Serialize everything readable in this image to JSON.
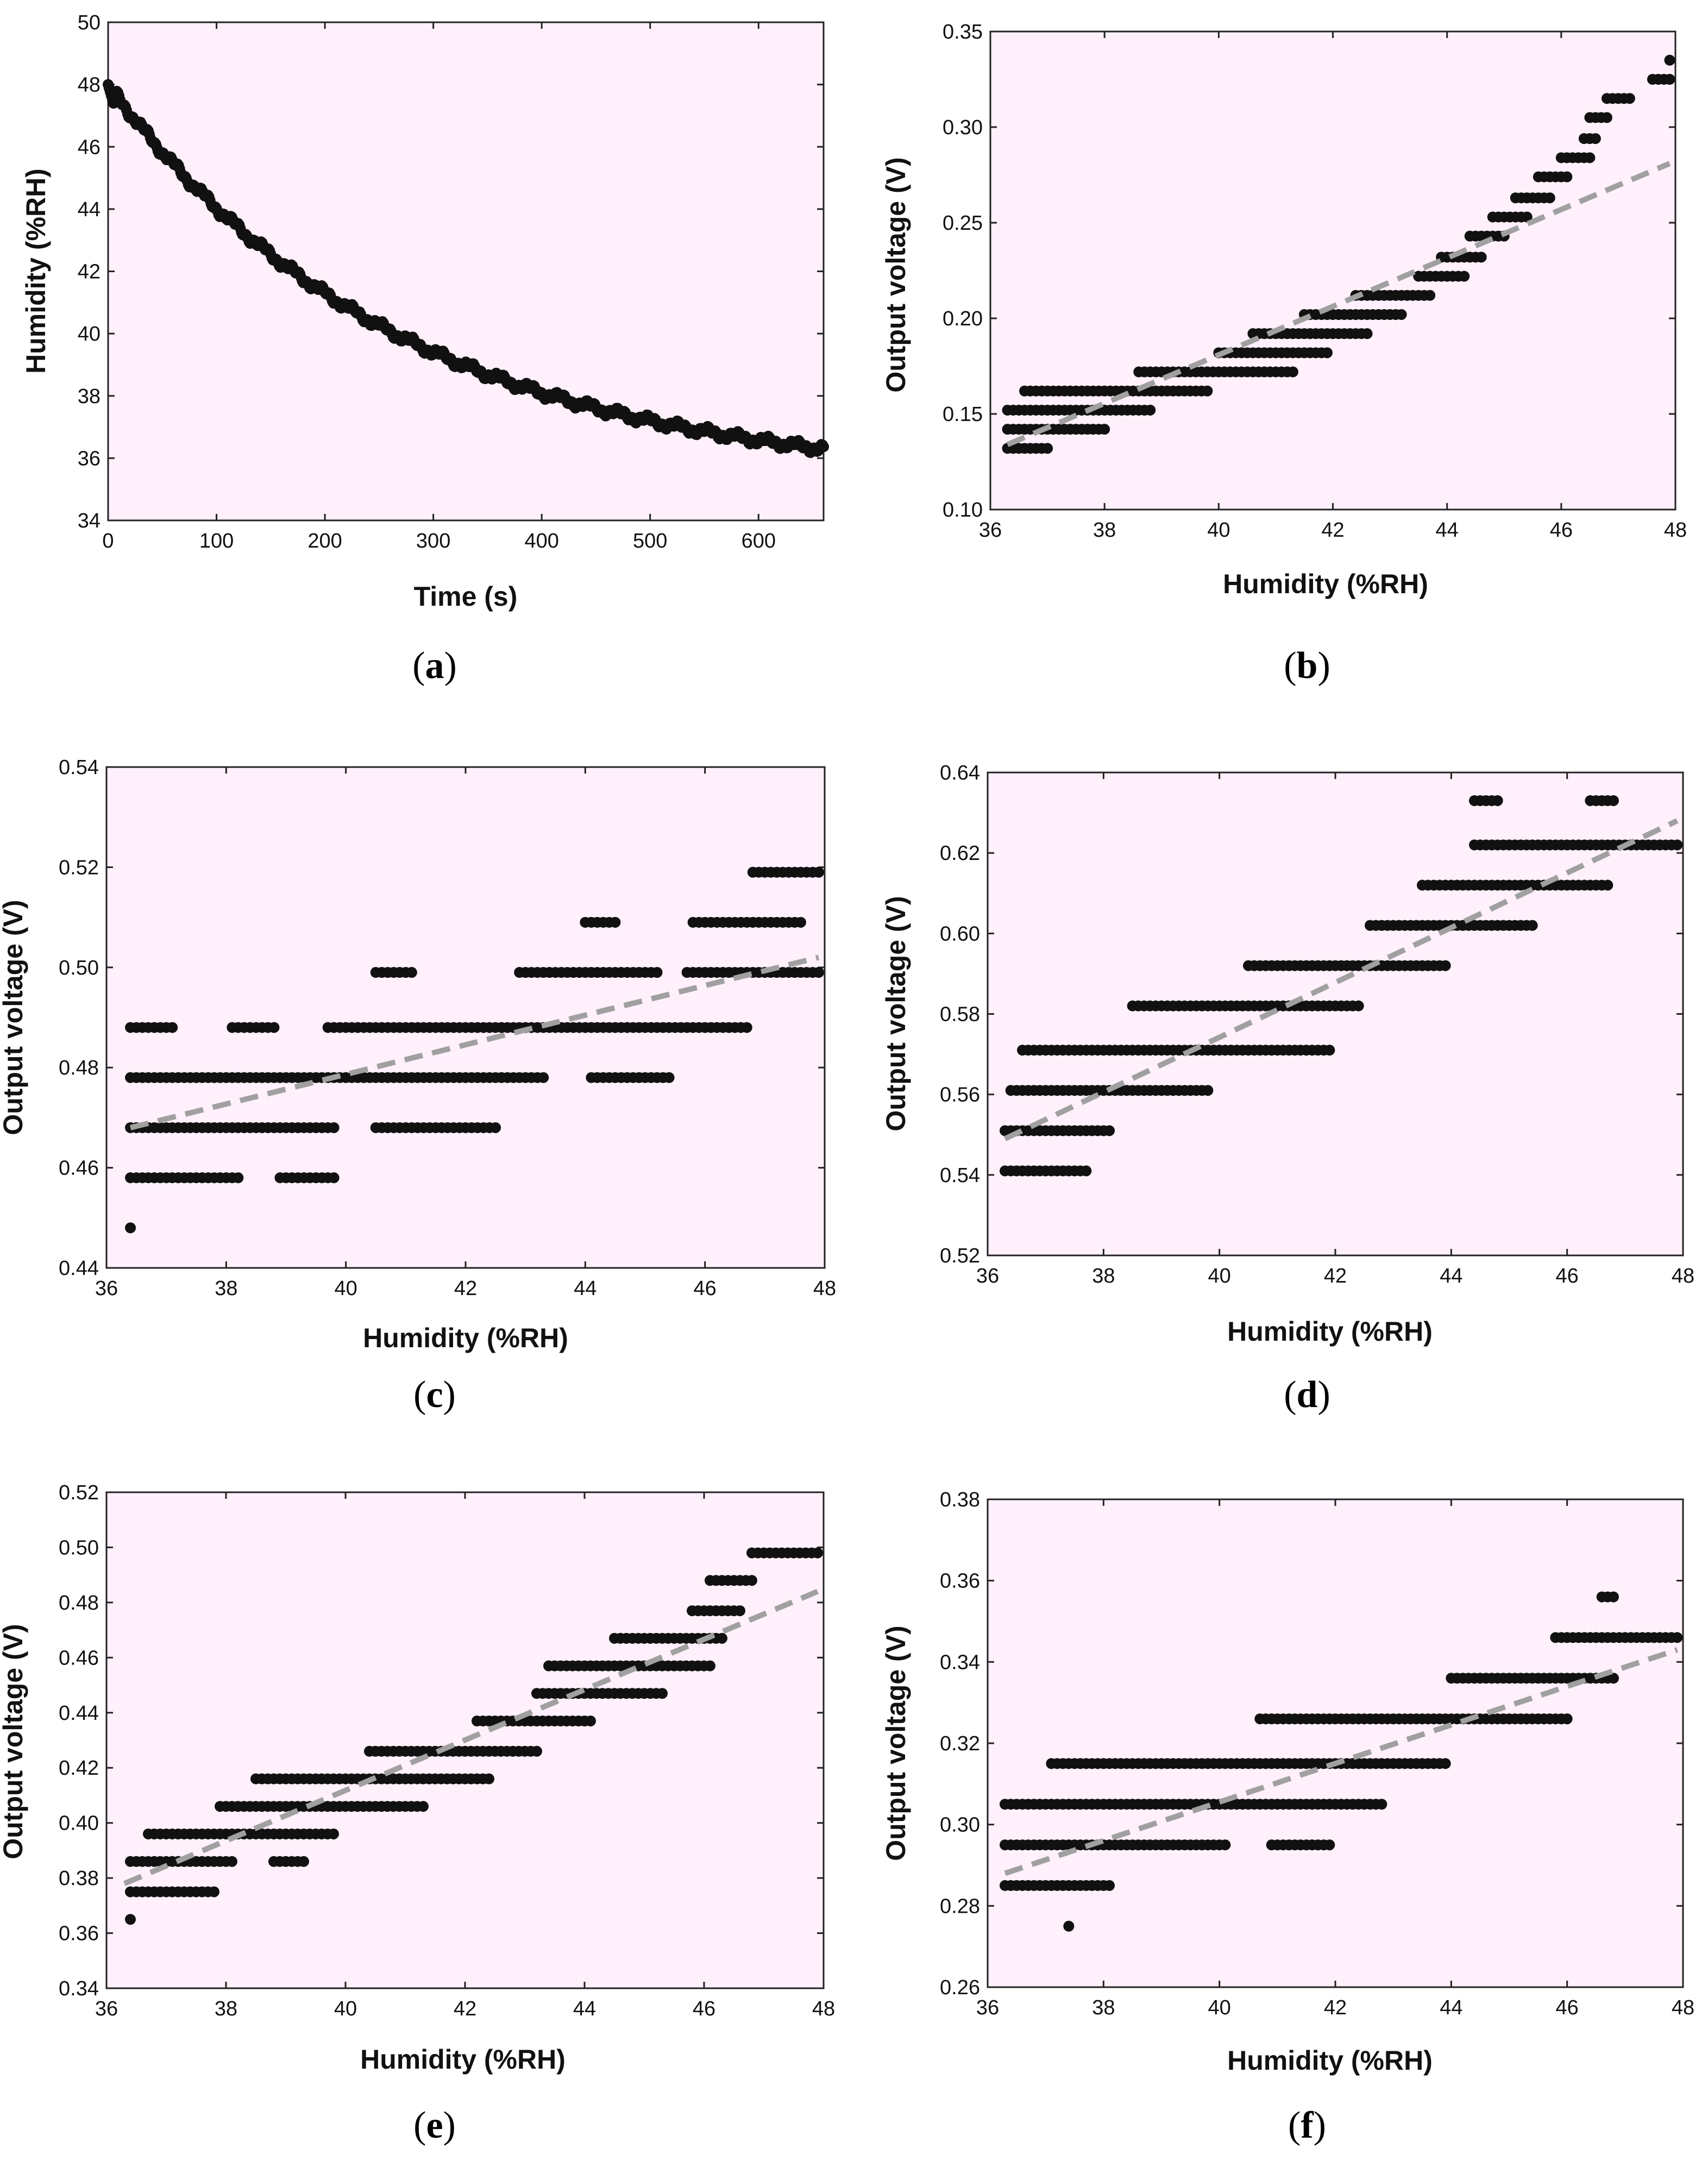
{
  "colors": {
    "plot_bg": "#fff0fb",
    "marker": "#111111",
    "fit_line": "#a0a0a0",
    "frame": "#222222"
  },
  "chart_data": [
    {
      "id": "a",
      "type": "scatter",
      "caption": {
        "open": "(",
        "letter": "a",
        "close": ")"
      },
      "xlabel": "Time (s)",
      "ylabel": "Humidity (%RH)",
      "xlim": [
        0,
        660
      ],
      "ylim": [
        34,
        50
      ],
      "xticks": [
        0,
        100,
        200,
        300,
        400,
        500,
        600
      ],
      "yticks": [
        34,
        36,
        38,
        40,
        42,
        44,
        46,
        48,
        50
      ],
      "curve": {
        "model": "exponential_decay",
        "start": 48.0,
        "end": 36.3,
        "n_points": 660,
        "plateau": 35.2,
        "tau": 270
      },
      "fit_line": null
    },
    {
      "id": "b",
      "type": "scatter",
      "caption": {
        "open": "(",
        "letter": "b",
        "close": ")"
      },
      "xlabel": "Humidity (%RH)",
      "ylabel": "Output voltage (V)",
      "xlim": [
        36,
        48
      ],
      "ylim": [
        0.1,
        0.35
      ],
      "xticks": [
        36,
        38,
        40,
        42,
        44,
        46,
        48
      ],
      "yticks": [
        0.1,
        0.15,
        0.2,
        0.25,
        0.3,
        0.35
      ],
      "ytick_decimals": 2,
      "series": [
        {
          "y": 0.132,
          "x_from": 36.3,
          "x_to": 37.0
        },
        {
          "y": 0.142,
          "x_from": 36.3,
          "x_to": 38.0
        },
        {
          "y": 0.152,
          "x_from": 36.3,
          "x_to": 38.8
        },
        {
          "y": 0.162,
          "x_from": 36.6,
          "x_to": 39.8
        },
        {
          "y": 0.172,
          "x_from": 38.6,
          "x_to": 41.3
        },
        {
          "y": 0.182,
          "x_from": 40.0,
          "x_to": 41.9
        },
        {
          "y": 0.192,
          "x_from": 40.6,
          "x_to": 42.6
        },
        {
          "y": 0.202,
          "x_from": 41.5,
          "x_to": 43.2
        },
        {
          "y": 0.212,
          "x_from": 42.4,
          "x_to": 43.7
        },
        {
          "y": 0.222,
          "x_from": 43.5,
          "x_to": 44.3
        },
        {
          "y": 0.232,
          "x_from": 43.9,
          "x_to": 44.6
        },
        {
          "y": 0.243,
          "x_from": 44.4,
          "x_to": 45.0
        },
        {
          "y": 0.253,
          "x_from": 44.8,
          "x_to": 45.4
        },
        {
          "y": 0.263,
          "x_from": 45.2,
          "x_to": 45.8
        },
        {
          "y": 0.274,
          "x_from": 45.6,
          "x_to": 46.1
        },
        {
          "y": 0.284,
          "x_from": 46.0,
          "x_to": 46.5
        },
        {
          "y": 0.294,
          "x_from": 46.4,
          "x_to": 46.6
        },
        {
          "y": 0.305,
          "x_from": 46.5,
          "x_to": 46.8
        },
        {
          "y": 0.315,
          "x_from": 46.8,
          "x_to": 47.2
        },
        {
          "y": 0.325,
          "x_from": 47.6,
          "x_to": 47.9
        },
        {
          "y": 0.335,
          "x_from": 47.9,
          "x_to": 47.9
        }
      ],
      "fit_line": {
        "x1": 36.3,
        "y1": 0.134,
        "x2": 47.9,
        "y2": 0.281
      }
    },
    {
      "id": "c",
      "type": "scatter",
      "caption": {
        "open": "(",
        "letter": "c",
        "close": ")"
      },
      "xlabel": "Humidity (%RH)",
      "ylabel": "Output voltage (V)",
      "xlim": [
        36,
        48
      ],
      "ylim": [
        0.44,
        0.54
      ],
      "xticks": [
        36,
        38,
        40,
        42,
        44,
        46,
        48
      ],
      "yticks": [
        0.44,
        0.46,
        0.48,
        0.5,
        0.52,
        0.54
      ],
      "ytick_decimals": 2,
      "series": [
        {
          "y": 0.448,
          "x_from": 36.4,
          "x_to": 36.4
        },
        {
          "y": 0.458,
          "x_from": 36.4,
          "x_to": 38.2
        },
        {
          "y": 0.458,
          "x_from": 38.9,
          "x_to": 39.8
        },
        {
          "y": 0.468,
          "x_from": 36.4,
          "x_to": 39.8
        },
        {
          "y": 0.468,
          "x_from": 40.5,
          "x_to": 42.5
        },
        {
          "y": 0.478,
          "x_from": 36.4,
          "x_to": 43.3
        },
        {
          "y": 0.478,
          "x_from": 44.1,
          "x_to": 45.4
        },
        {
          "y": 0.488,
          "x_from": 36.4,
          "x_to": 37.1
        },
        {
          "y": 0.488,
          "x_from": 38.1,
          "x_to": 38.8
        },
        {
          "y": 0.488,
          "x_from": 39.7,
          "x_to": 46.7
        },
        {
          "y": 0.499,
          "x_from": 40.5,
          "x_to": 41.1
        },
        {
          "y": 0.499,
          "x_from": 42.9,
          "x_to": 45.2
        },
        {
          "y": 0.499,
          "x_from": 45.7,
          "x_to": 47.9
        },
        {
          "y": 0.509,
          "x_from": 44.0,
          "x_to": 44.5
        },
        {
          "y": 0.509,
          "x_from": 45.8,
          "x_to": 47.6
        },
        {
          "y": 0.519,
          "x_from": 46.8,
          "x_to": 47.9
        }
      ],
      "fit_line": {
        "x1": 36.4,
        "y1": 0.468,
        "x2": 47.9,
        "y2": 0.502
      }
    },
    {
      "id": "d",
      "type": "scatter",
      "caption": {
        "open": "(",
        "letter": "d",
        "close": ")"
      },
      "xlabel": "Humidity (%RH)",
      "ylabel": "Output voltage (V)",
      "xlim": [
        36,
        48
      ],
      "ylim": [
        0.52,
        0.64
      ],
      "xticks": [
        36,
        38,
        40,
        42,
        44,
        46,
        48
      ],
      "yticks": [
        0.52,
        0.54,
        0.56,
        0.58,
        0.6,
        0.62,
        0.64
      ],
      "ytick_decimals": 2,
      "series": [
        {
          "y": 0.541,
          "x_from": 36.3,
          "x_to": 37.7
        },
        {
          "y": 0.551,
          "x_from": 36.3,
          "x_to": 38.1
        },
        {
          "y": 0.561,
          "x_from": 36.4,
          "x_to": 39.8
        },
        {
          "y": 0.571,
          "x_from": 36.6,
          "x_to": 41.9
        },
        {
          "y": 0.582,
          "x_from": 38.5,
          "x_to": 42.4
        },
        {
          "y": 0.592,
          "x_from": 40.5,
          "x_to": 43.9
        },
        {
          "y": 0.602,
          "x_from": 42.6,
          "x_to": 45.4
        },
        {
          "y": 0.612,
          "x_from": 43.5,
          "x_to": 46.7
        },
        {
          "y": 0.622,
          "x_from": 44.4,
          "x_to": 47.9
        },
        {
          "y": 0.633,
          "x_from": 44.4,
          "x_to": 44.8
        },
        {
          "y": 0.633,
          "x_from": 46.4,
          "x_to": 46.8
        }
      ],
      "fit_line": {
        "x1": 36.3,
        "y1": 0.549,
        "x2": 47.9,
        "y2": 0.628
      }
    },
    {
      "id": "e",
      "type": "scatter",
      "caption": {
        "open": "(",
        "letter": "e",
        "close": ")"
      },
      "xlabel": "Humidity (%RH)",
      "ylabel": "Output voltage (V)",
      "xlim": [
        36,
        48
      ],
      "ylim": [
        0.34,
        0.52
      ],
      "xticks": [
        36,
        38,
        40,
        42,
        44,
        46,
        48
      ],
      "yticks": [
        0.34,
        0.36,
        0.38,
        0.4,
        0.42,
        0.44,
        0.46,
        0.48,
        0.5,
        0.52
      ],
      "ytick_decimals": 2,
      "series": [
        {
          "y": 0.365,
          "x_from": 36.4,
          "x_to": 36.4
        },
        {
          "y": 0.375,
          "x_from": 36.4,
          "x_to": 37.8
        },
        {
          "y": 0.386,
          "x_from": 36.4,
          "x_to": 38.1
        },
        {
          "y": 0.386,
          "x_from": 38.8,
          "x_to": 39.3
        },
        {
          "y": 0.396,
          "x_from": 36.7,
          "x_to": 39.8
        },
        {
          "y": 0.406,
          "x_from": 37.9,
          "x_to": 41.3
        },
        {
          "y": 0.416,
          "x_from": 38.5,
          "x_to": 42.4
        },
        {
          "y": 0.426,
          "x_from": 40.4,
          "x_to": 43.2
        },
        {
          "y": 0.437,
          "x_from": 42.2,
          "x_to": 44.1
        },
        {
          "y": 0.447,
          "x_from": 43.2,
          "x_to": 45.3
        },
        {
          "y": 0.457,
          "x_from": 43.4,
          "x_to": 46.1
        },
        {
          "y": 0.467,
          "x_from": 44.5,
          "x_to": 46.3
        },
        {
          "y": 0.477,
          "x_from": 45.8,
          "x_to": 46.6
        },
        {
          "y": 0.488,
          "x_from": 46.1,
          "x_to": 46.8
        },
        {
          "y": 0.498,
          "x_from": 46.8,
          "x_to": 47.9
        }
      ],
      "fit_line": {
        "x1": 36.3,
        "y1": 0.378,
        "x2": 47.9,
        "y2": 0.484
      }
    },
    {
      "id": "f",
      "type": "scatter",
      "caption": {
        "open": "(",
        "letter": "f",
        "close": ")"
      },
      "xlabel": "Humidity (%RH)",
      "ylabel": "Output voltage (V)",
      "xlim": [
        36,
        48
      ],
      "ylim": [
        0.26,
        0.38
      ],
      "xticks": [
        36,
        38,
        40,
        42,
        44,
        46,
        48
      ],
      "yticks": [
        0.26,
        0.28,
        0.3,
        0.32,
        0.34,
        0.36,
        0.38
      ],
      "ytick_decimals": 2,
      "series": [
        {
          "y": 0.275,
          "x_from": 37.4,
          "x_to": 37.4
        },
        {
          "y": 0.285,
          "x_from": 36.3,
          "x_to": 38.1
        },
        {
          "y": 0.295,
          "x_from": 36.3,
          "x_to": 40.1
        },
        {
          "y": 0.295,
          "x_from": 40.9,
          "x_to": 41.9
        },
        {
          "y": 0.305,
          "x_from": 36.3,
          "x_to": 42.8
        },
        {
          "y": 0.315,
          "x_from": 37.1,
          "x_to": 43.9
        },
        {
          "y": 0.326,
          "x_from": 40.7,
          "x_to": 46.0
        },
        {
          "y": 0.336,
          "x_from": 44.0,
          "x_to": 46.8
        },
        {
          "y": 0.346,
          "x_from": 45.8,
          "x_to": 47.9
        },
        {
          "y": 0.356,
          "x_from": 46.6,
          "x_to": 46.8
        }
      ],
      "fit_line": {
        "x1": 36.3,
        "y1": 0.288,
        "x2": 47.9,
        "y2": 0.343
      }
    }
  ]
}
